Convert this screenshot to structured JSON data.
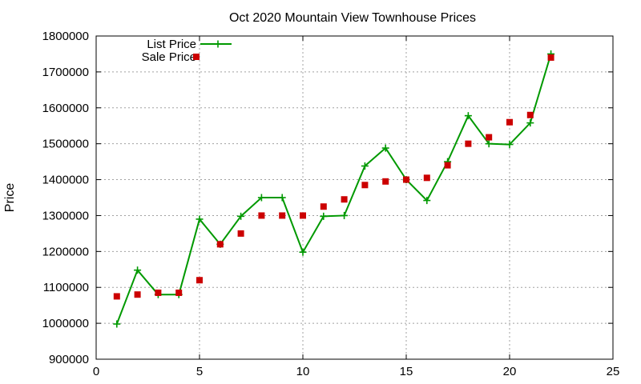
{
  "chart_data": {
    "type": "line",
    "title": "Oct 2020 Mountain View Townhouse Prices",
    "xlabel": "",
    "ylabel": "Price",
    "xlim": [
      0,
      25
    ],
    "ylim": [
      900000,
      1800000
    ],
    "xticks": [
      0,
      5,
      10,
      15,
      20,
      25
    ],
    "yticks": [
      900000,
      1000000,
      1100000,
      1200000,
      1300000,
      1400000,
      1500000,
      1600000,
      1700000,
      1800000
    ],
    "grid": true,
    "legend_position": "top-left",
    "series": [
      {
        "name": "List Price",
        "style": "line-plus",
        "color": "#009900",
        "x": [
          1,
          2,
          3,
          4,
          5,
          6,
          7,
          8,
          9,
          10,
          11,
          12,
          13,
          14,
          15,
          16,
          17,
          18,
          19,
          20,
          21,
          22
        ],
        "y": [
          998000,
          1148000,
          1080000,
          1080000,
          1290000,
          1220000,
          1298000,
          1350000,
          1350000,
          1198000,
          1298000,
          1300000,
          1438000,
          1488000,
          1400000,
          1342000,
          1450000,
          1578000,
          1500000,
          1498000,
          1558000,
          1750000
        ]
      },
      {
        "name": "Sale Price",
        "style": "square",
        "color": "#cc0000",
        "x": [
          1,
          2,
          3,
          4,
          5,
          6,
          7,
          8,
          9,
          10,
          11,
          12,
          13,
          14,
          15,
          16,
          17,
          18,
          19,
          20,
          21,
          22
        ],
        "y": [
          1075000,
          1080000,
          1085000,
          1085000,
          1120000,
          1220000,
          1250000,
          1300000,
          1300000,
          1300000,
          1325000,
          1345000,
          1385000,
          1395000,
          1400000,
          1405000,
          1440000,
          1500000,
          1518000,
          1560000,
          1580000,
          1740000
        ]
      }
    ]
  }
}
